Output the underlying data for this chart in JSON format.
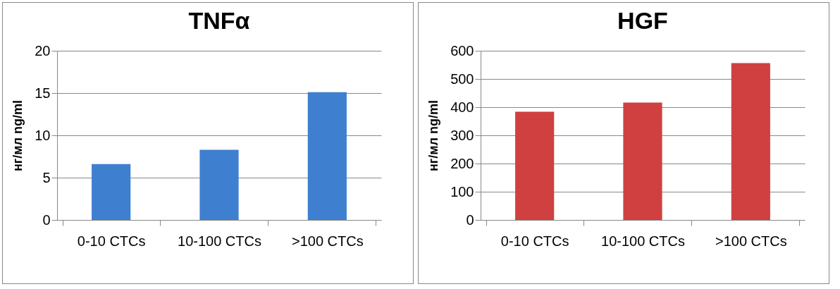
{
  "chart_data": [
    {
      "type": "bar",
      "title": "TNFα",
      "ylabel": "нг/мл ng/ml",
      "categories": [
        "0-10 CTCs",
        "10-100 CTCs",
        ">100 CTCs"
      ],
      "values": [
        6.6,
        8.3,
        15.1
      ],
      "color": "#3f7fcf",
      "ylim": [
        0,
        20
      ],
      "yticks": [
        0,
        5,
        10,
        15,
        20
      ],
      "grid": "y"
    },
    {
      "type": "bar",
      "title": "HGF",
      "ylabel": "нг/мл ng/ml",
      "categories": [
        "0-10 CTCs",
        "10-100 CTCs",
        ">100 CTCs"
      ],
      "values": [
        384,
        416,
        556
      ],
      "color": "#d04040",
      "ylim": [
        0,
        600
      ],
      "yticks": [
        0,
        100,
        200,
        300,
        400,
        500,
        600
      ],
      "grid": "y"
    }
  ]
}
